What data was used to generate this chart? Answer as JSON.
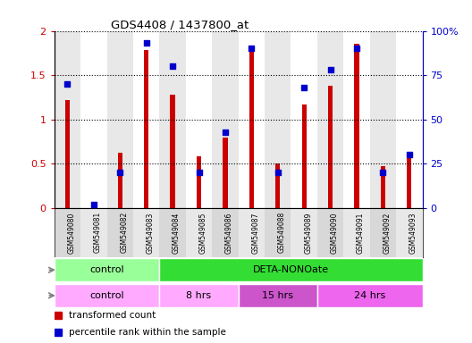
{
  "title": "GDS4408 / 1437800_at",
  "samples": [
    "GSM549080",
    "GSM549081",
    "GSM549082",
    "GSM549083",
    "GSM549084",
    "GSM549085",
    "GSM549086",
    "GSM549087",
    "GSM549088",
    "GSM549089",
    "GSM549090",
    "GSM549091",
    "GSM549092",
    "GSM549093"
  ],
  "red_values": [
    1.22,
    0.02,
    0.62,
    1.78,
    1.28,
    0.58,
    0.8,
    1.8,
    0.5,
    1.17,
    1.38,
    1.85,
    0.47,
    0.62
  ],
  "blue_values": [
    70,
    2,
    20,
    93,
    80,
    20,
    43,
    90,
    20,
    68,
    78,
    90,
    20,
    30
  ],
  "red_color": "#CC0000",
  "blue_color": "#0000CC",
  "ylim_left": [
    0,
    2
  ],
  "ylim_right": [
    0,
    100
  ],
  "yticks_left": [
    0,
    0.5,
    1.0,
    1.5,
    2.0
  ],
  "ytick_labels_left": [
    "0",
    "0.5",
    "1",
    "1.5",
    "2"
  ],
  "yticks_right": [
    0,
    25,
    50,
    75,
    100
  ],
  "ytick_labels_right": [
    "0",
    "25",
    "50",
    "75",
    "100%"
  ],
  "agent_groups": [
    {
      "label": "control",
      "start": 0,
      "end": 4,
      "color": "#99FF99"
    },
    {
      "label": "DETA-NONOate",
      "start": 4,
      "end": 14,
      "color": "#33DD33"
    }
  ],
  "time_groups": [
    {
      "label": "control",
      "start": 0,
      "end": 4,
      "color": "#FFAAFF"
    },
    {
      "label": "8 hrs",
      "start": 4,
      "end": 7,
      "color": "#FFAAFF"
    },
    {
      "label": "15 hrs",
      "start": 7,
      "end": 10,
      "color": "#CC55CC"
    },
    {
      "label": "24 hrs",
      "start": 10,
      "end": 14,
      "color": "#EE66EE"
    }
  ],
  "legend_red": "transformed count",
  "legend_blue": "percentile rank within the sample",
  "background_color": "#FFFFFF",
  "plot_bg": "#FFFFFF",
  "label_bg": "#CCCCCC"
}
